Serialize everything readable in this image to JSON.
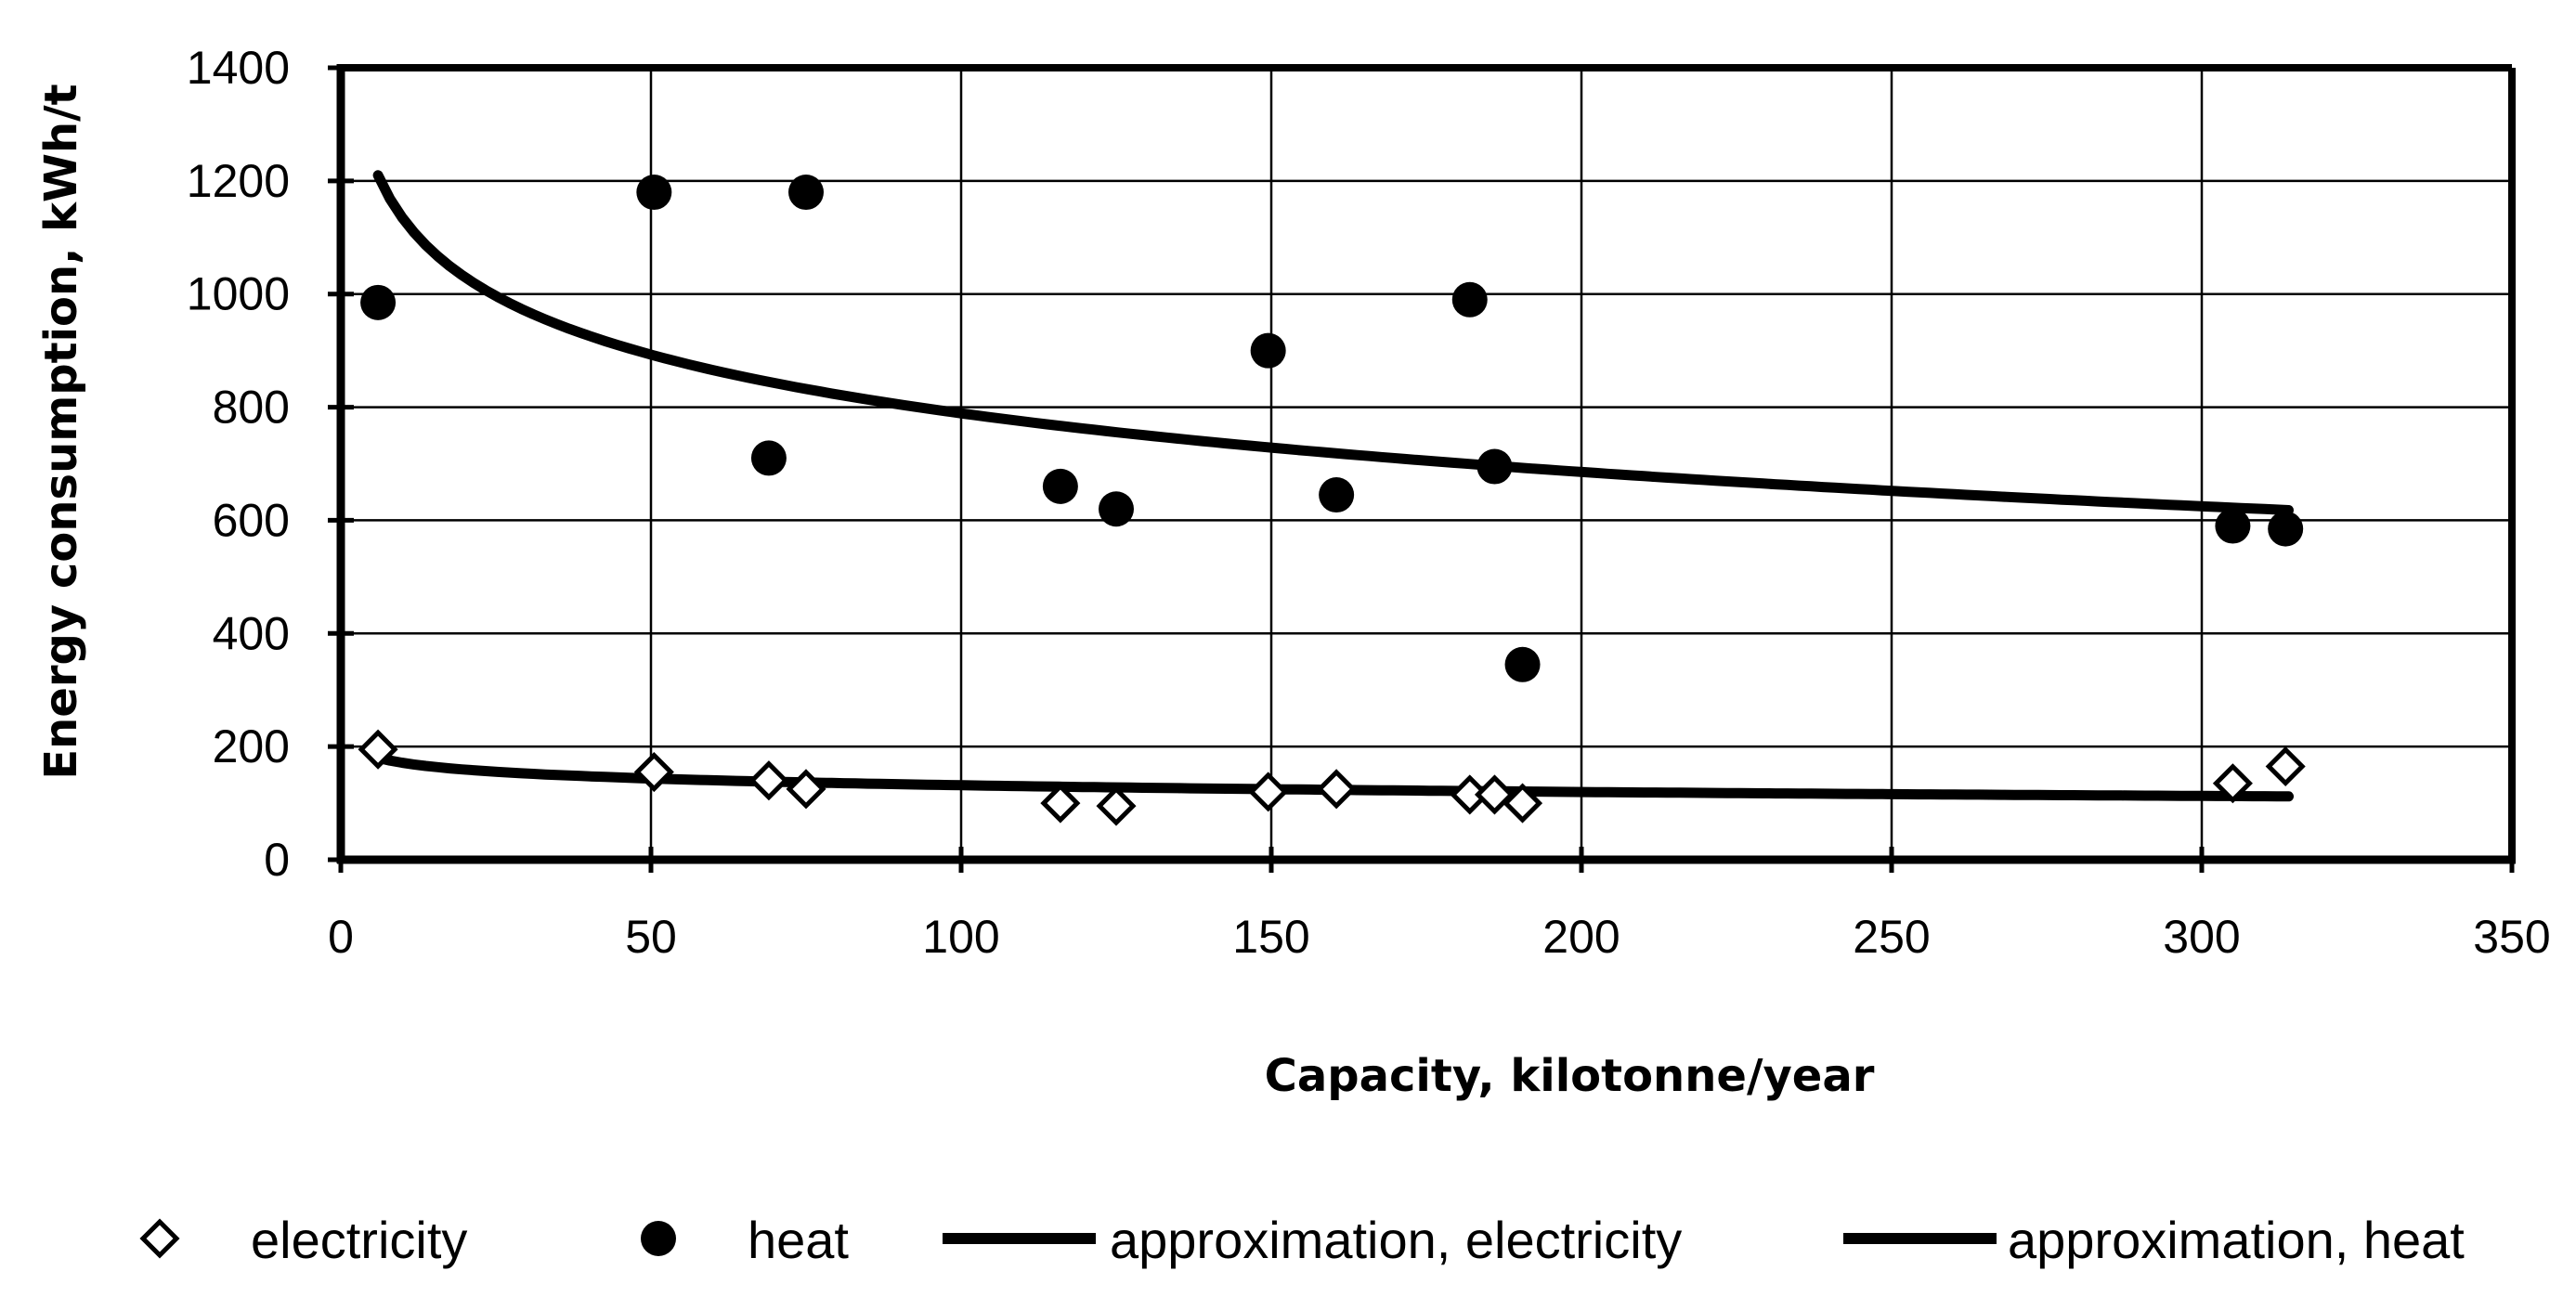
{
  "chart_data": {
    "type": "scatter",
    "title": "",
    "xlabel": "Capacity, kilotonne/year",
    "ylabel": "Energy consumption, kWh/t",
    "xlim": [
      0,
      350
    ],
    "ylim": [
      0,
      1400
    ],
    "x_ticks": [
      "0",
      "50",
      "100",
      "150",
      "200",
      "250",
      "300",
      "350"
    ],
    "y_ticks": [
      "0",
      "200",
      "400",
      "600",
      "800",
      "1000",
      "1200",
      "1400"
    ],
    "grid": true,
    "legend_position": "bottom",
    "series": [
      {
        "name": "electricity",
        "marker": "diamond-open",
        "x": [
          6,
          50.5,
          69,
          75,
          116,
          125,
          149.5,
          160.5,
          182,
          186,
          190.5,
          305,
          313.5
        ],
        "y": [
          195,
          155,
          140,
          125,
          100,
          95,
          120,
          125,
          115,
          115,
          100,
          135,
          165
        ]
      },
      {
        "name": "heat",
        "marker": "circle-filled",
        "x": [
          6,
          50.5,
          69,
          75,
          116,
          125,
          149.5,
          160.5,
          182,
          186,
          190.5,
          305,
          313.5
        ],
        "y": [
          985,
          1180,
          710,
          1180,
          660,
          620,
          900,
          645,
          990,
          695,
          345,
          590,
          585
        ]
      },
      {
        "name": "approximation, electricity",
        "kind": "line",
        "model": "logarithmic",
        "x_range": [
          6,
          314
        ],
        "points_y": [
          {
            "x": 6,
            "y": 180
          },
          {
            "x": 314,
            "y": 112
          }
        ]
      },
      {
        "name": "approximation, heat",
        "kind": "line",
        "model": "logarithmic",
        "x_range": [
          6,
          314
        ],
        "points_y": [
          {
            "x": 6,
            "y": 1210
          },
          {
            "x": 314,
            "y": 618
          }
        ]
      }
    ]
  }
}
